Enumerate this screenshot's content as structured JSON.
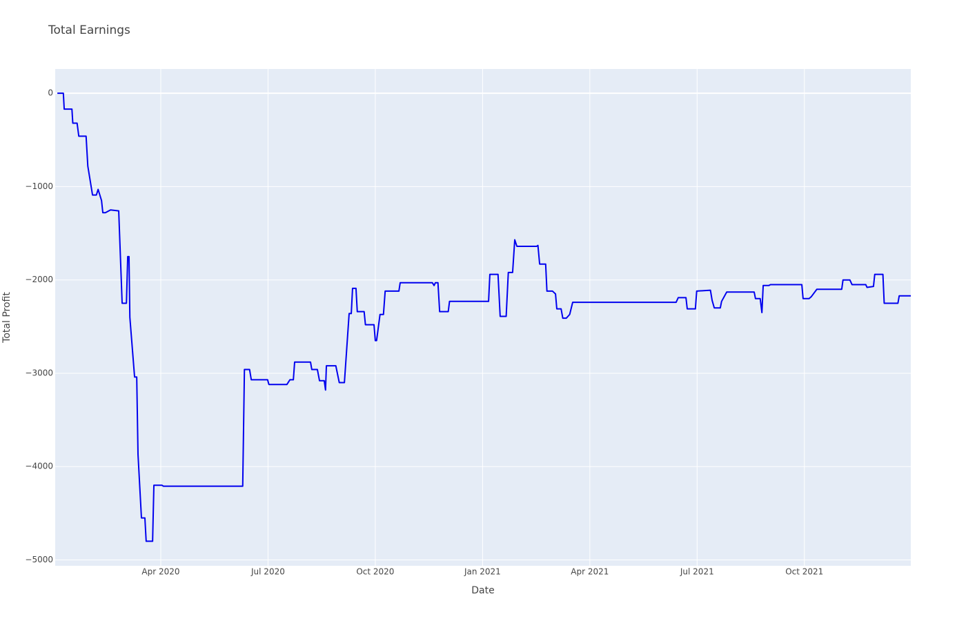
{
  "chart_data": {
    "type": "line",
    "title": "Total Earnings",
    "x_label": "Date",
    "y_label": "Total Profit",
    "x": [
      2020.009,
      2020.023,
      2020.025,
      2020.043,
      2020.045,
      2020.055,
      2020.059,
      2020.076,
      2020.08,
      2020.091,
      2020.1,
      2020.104,
      2020.112,
      2020.115,
      2020.121,
      2020.133,
      2020.152,
      2020.16,
      2020.17,
      2020.173,
      2020.176,
      2020.178,
      2020.189,
      2020.194,
      2020.197,
      2020.205,
      2020.213,
      2020.216,
      2020.231,
      2020.234,
      2020.253,
      2020.256,
      2020.441,
      2020.445,
      2020.457,
      2020.461,
      2020.499,
      2020.502,
      2020.544,
      2020.551,
      2020.559,
      2020.562,
      2020.599,
      2020.602,
      2020.615,
      2020.62,
      2020.631,
      2020.634,
      2020.636,
      2020.658,
      2020.666,
      2020.678,
      2020.689,
      2020.694,
      2020.697,
      2020.705,
      2020.708,
      2020.724,
      2020.727,
      2020.747,
      2020.75,
      2020.753,
      2020.761,
      2020.769,
      2020.773,
      2020.805,
      2020.808,
      2020.883,
      2020.887,
      2020.89,
      2020.896,
      2020.9,
      2020.92,
      2020.923,
      2021.014,
      2021.017,
      2021.036,
      2021.041,
      2021.055,
      2021.06,
      2021.07,
      2021.075,
      2021.08,
      2021.126,
      2021.129,
      2021.133,
      2021.147,
      2021.15,
      2021.163,
      2021.17,
      2021.173,
      2021.183,
      2021.187,
      2021.195,
      2021.203,
      2021.21,
      2021.451,
      2021.456,
      2021.474,
      2021.477,
      2021.496,
      2021.499,
      2021.531,
      2021.535,
      2021.54,
      2021.554,
      2021.557,
      2021.569,
      2021.633,
      2021.636,
      2021.647,
      2021.651,
      2021.654,
      2021.667,
      2021.671,
      2021.744,
      2021.747,
      2021.761,
      2021.766,
      2021.779,
      2021.837,
      2021.84,
      2021.856,
      2021.861,
      2021.893,
      2021.896,
      2021.911,
      2021.914,
      2021.933,
      2021.936,
      2021.968,
      2021.971,
      2021.998
    ],
    "values": [
      0,
      0,
      -170,
      -170,
      -320,
      -320,
      -460,
      -460,
      -780,
      -1090,
      -1090,
      -1030,
      -1150,
      -1280,
      -1280,
      -1250,
      -1260,
      -2250,
      -2250,
      -1750,
      -1750,
      -2400,
      -3040,
      -3040,
      -3870,
      -4550,
      -4550,
      -4800,
      -4800,
      -4200,
      -4200,
      -4210,
      -4210,
      -2960,
      -2960,
      -3070,
      -3070,
      -3120,
      -3120,
      -3070,
      -3070,
      -2880,
      -2880,
      -2960,
      -2960,
      -3080,
      -3080,
      -3180,
      -2920,
      -2920,
      -3100,
      -3100,
      -2360,
      -2360,
      -2090,
      -2090,
      -2340,
      -2340,
      -2480,
      -2480,
      -2650,
      -2650,
      -2370,
      -2370,
      -2120,
      -2120,
      -2030,
      -2030,
      -2060,
      -2030,
      -2030,
      -2340,
      -2340,
      -2230,
      -2230,
      -1940,
      -1940,
      -2390,
      -2390,
      -1920,
      -1920,
      -1570,
      -1640,
      -1640,
      -1630,
      -1830,
      -1830,
      -2120,
      -2120,
      -2150,
      -2310,
      -2310,
      -2410,
      -2410,
      -2370,
      -2240,
      -2240,
      -2190,
      -2190,
      -2310,
      -2310,
      -2120,
      -2110,
      -2220,
      -2300,
      -2300,
      -2230,
      -2130,
      -2130,
      -2200,
      -2200,
      -2350,
      -2060,
      -2060,
      -2050,
      -2050,
      -2200,
      -2200,
      -2180,
      -2100,
      -2100,
      -2000,
      -2000,
      -2050,
      -2050,
      -2080,
      -2070,
      -1940,
      -1940,
      -2250,
      -2250,
      -2170,
      -2170
    ],
    "color": "#0000ee",
    "xlim": [
      2020.004,
      2021.998
    ],
    "ylim": [
      -5063,
      260
    ],
    "xticks": [
      {
        "value": 2020.25,
        "label": "Apr 2020"
      },
      {
        "value": 2020.5,
        "label": "Jul 2020"
      },
      {
        "value": 2020.75,
        "label": "Oct 2020"
      },
      {
        "value": 2021.0,
        "label": "Jan 2021"
      },
      {
        "value": 2021.25,
        "label": "Apr 2021"
      },
      {
        "value": 2021.5,
        "label": "Jul 2021"
      },
      {
        "value": 2021.75,
        "label": "Oct 2021"
      }
    ],
    "yticks": [
      0,
      {
        "value": -1000,
        "label": "−1000"
      },
      {
        "value": -2000,
        "label": "−2000"
      },
      {
        "value": -3000,
        "label": "−3000"
      },
      {
        "value": -4000,
        "label": "−4000"
      },
      {
        "value": -5000,
        "label": "−5000"
      }
    ],
    "grid": true
  }
}
